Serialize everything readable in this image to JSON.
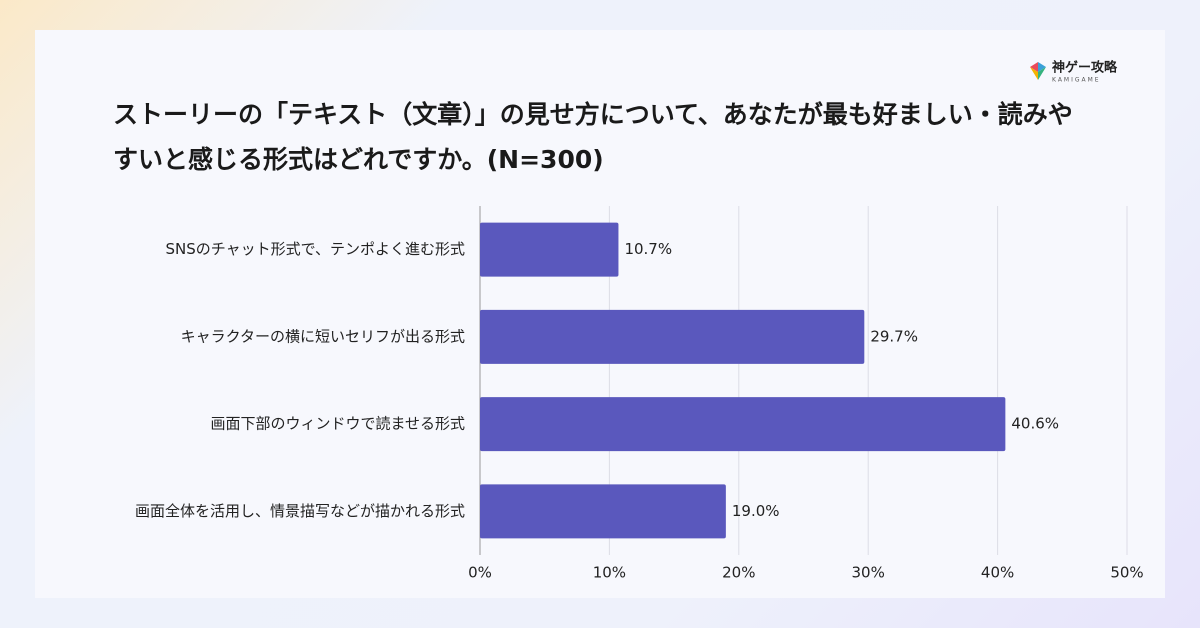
{
  "logo": {
    "name": "神ゲー攻略",
    "sub": "KAMIGAME"
  },
  "chart_data": {
    "type": "barh",
    "title": "ストーリーの「テキスト（文章）」の見せ方について、あなたが最も好ましい・読みやすいと感じる形式はどれですか。(N=300)",
    "categories": [
      "SNSのチャット形式で、テンポよく進む形式",
      "キャラクターの横に短いセリフが出る形式",
      "画面下部のウィンドウで読ませる形式",
      "画面全体を活用し、情景描写などが描かれる形式"
    ],
    "values": [
      10.7,
      29.7,
      40.6,
      19.0
    ],
    "value_labels": [
      "10.7%",
      "29.7%",
      "40.6%",
      "19.0%"
    ],
    "color": "#5a58bd",
    "xlim": [
      0,
      50
    ],
    "xticks": [
      {
        "value": 0,
        "label": "0%"
      },
      {
        "value": 10,
        "label": "10%"
      },
      {
        "value": 20,
        "label": "20%"
      },
      {
        "value": 30,
        "label": "30%"
      },
      {
        "value": 40,
        "label": "40%"
      },
      {
        "value": 50,
        "label": "50%"
      }
    ],
    "grid": true
  }
}
